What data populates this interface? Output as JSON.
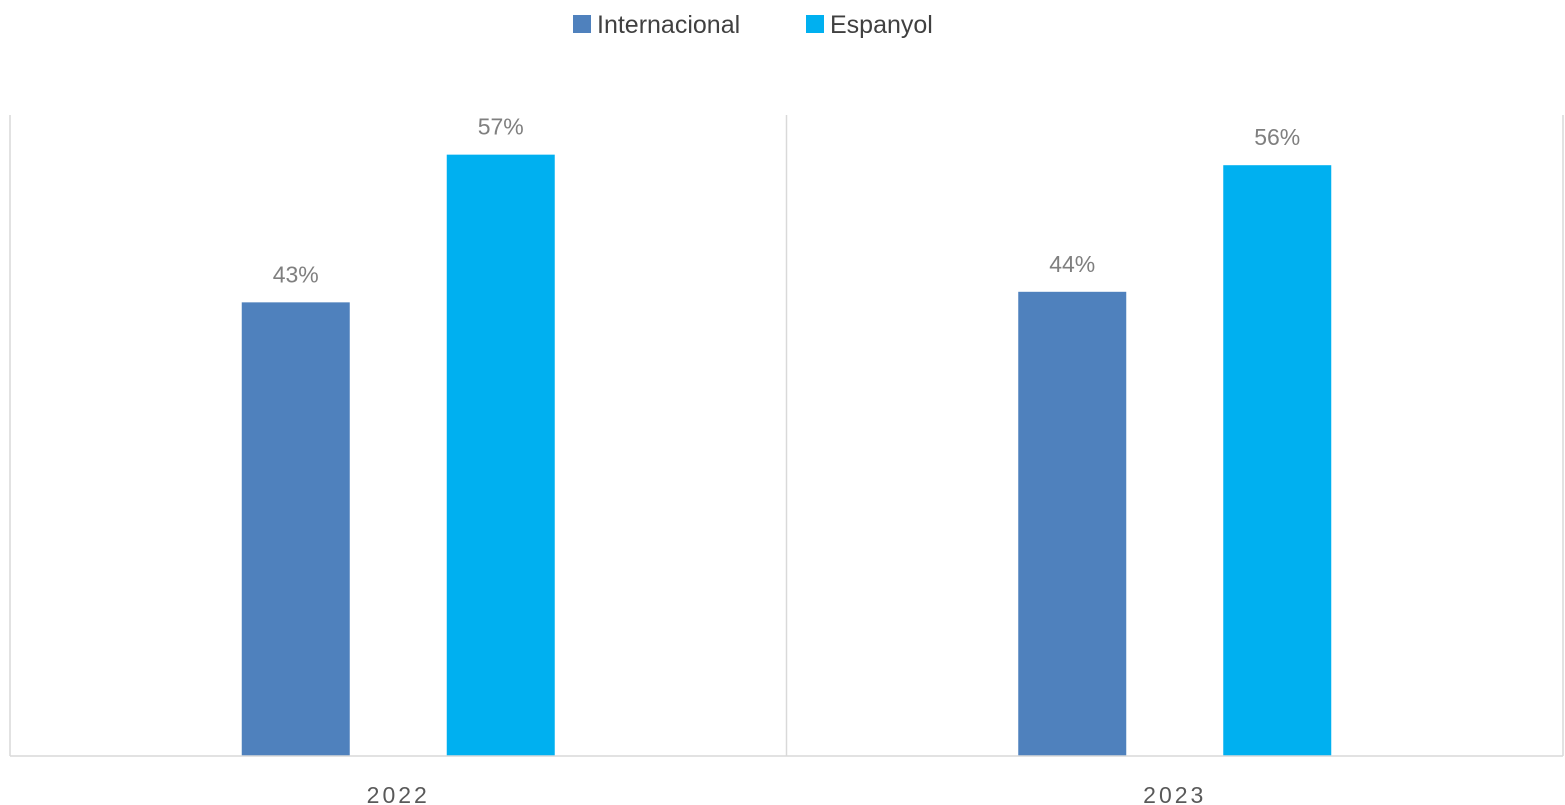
{
  "chart_data": {
    "type": "bar",
    "categories": [
      "2022",
      "2023"
    ],
    "series": [
      {
        "name": "Internacional",
        "values": [
          43,
          44
        ],
        "labels": [
          "43%",
          "44%"
        ],
        "color": "#4f81bd"
      },
      {
        "name": "Espanyol",
        "values": [
          57,
          56
        ],
        "labels": [
          "57%",
          "56%"
        ],
        "color": "#00b0f0"
      }
    ],
    "title": "",
    "xlabel": "",
    "ylabel": "",
    "ylim": [
      0,
      60
    ],
    "legend_position": "top-center",
    "grid": false,
    "category_separators": true
  }
}
